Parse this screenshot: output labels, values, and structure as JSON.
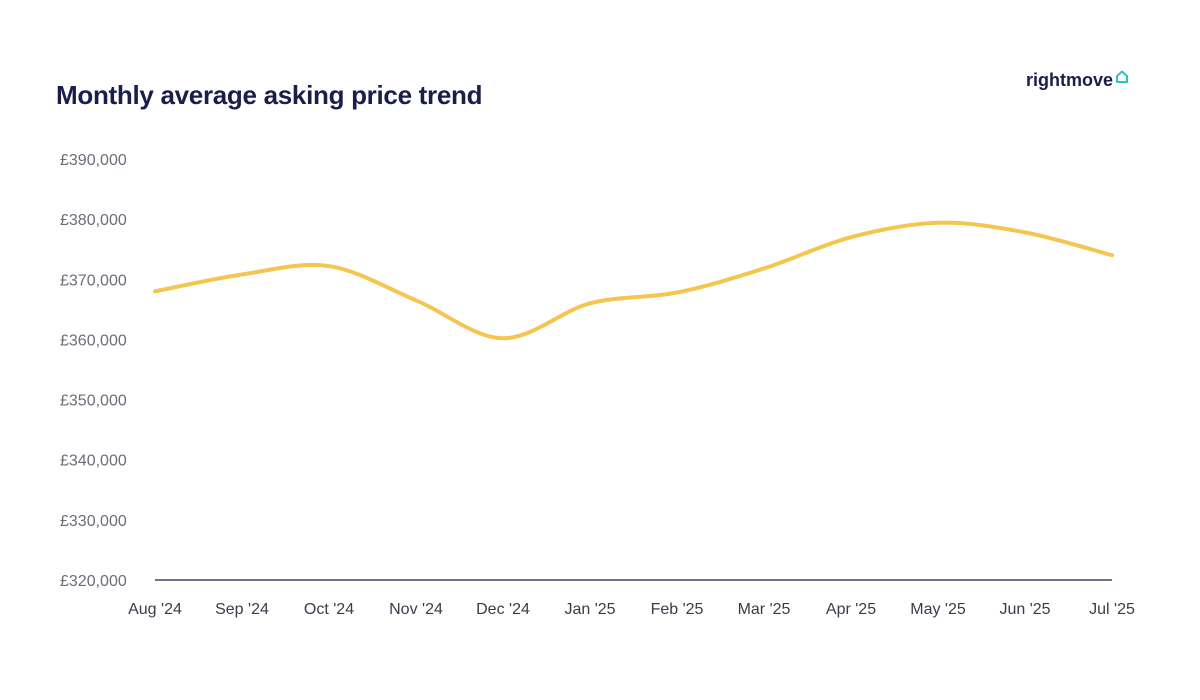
{
  "header": {
    "title": "Monthly average asking price trend",
    "brand": "rightmove"
  },
  "colors": {
    "line": "#f5c64f",
    "axis": "#1b1d4a",
    "title": "#1b1d4a",
    "brand_icon": "#2ec4b6"
  },
  "chart_data": {
    "type": "line",
    "title": "Monthly average asking price trend",
    "xlabel": "",
    "ylabel": "",
    "categories": [
      "Aug '24",
      "Sep '24",
      "Oct '24",
      "Nov '24",
      "Dec '24",
      "Jan '25",
      "Feb '25",
      "Mar '25",
      "Apr '25",
      "May '25",
      "Jun '25",
      "Jul '25"
    ],
    "y_ticks": [
      "£320,000",
      "£330,000",
      "£340,000",
      "£350,000",
      "£360,000",
      "£370,000",
      "£380,000",
      "£390,000"
    ],
    "ylim": [
      320000,
      390000
    ],
    "grid": false,
    "legend": "none",
    "series": [
      {
        "values": [
          368000,
          370800,
          372200,
          366500,
          360200,
          366000,
          367800,
          371800,
          377000,
          379400,
          377800,
          374000
        ]
      }
    ]
  }
}
